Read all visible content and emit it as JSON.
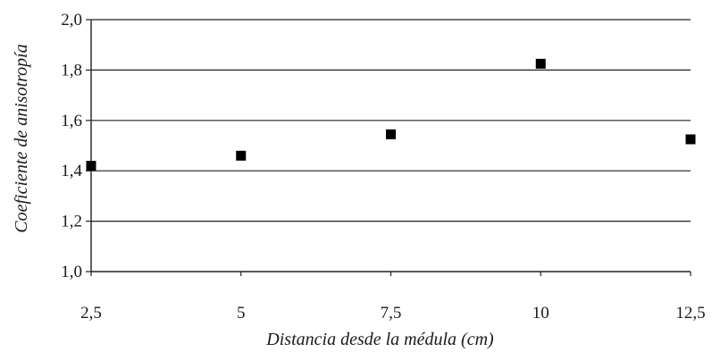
{
  "chart_data": {
    "type": "scatter",
    "xlabel": "Distancia desde la médula (cm)",
    "ylabel": "Coeficiente de anisotropía",
    "xlim": [
      2.5,
      12.5
    ],
    "ylim": [
      1.0,
      2.0
    ],
    "x_ticks": [
      "2,5",
      "5",
      "7,5",
      "10",
      "12,5"
    ],
    "y_ticks": [
      "1,0",
      "1,2",
      "1,4",
      "1,6",
      "1,8",
      "2,0"
    ],
    "x_tick_values": [
      2.5,
      5,
      7.5,
      10,
      12.5
    ],
    "y_tick_values": [
      1.0,
      1.2,
      1.4,
      1.6,
      1.8,
      2.0
    ],
    "grid": "horizontal",
    "series": [
      {
        "marker": "square",
        "color": "#000000",
        "points": [
          {
            "x": 2.5,
            "y": 1.42
          },
          {
            "x": 5,
            "y": 1.46
          },
          {
            "x": 7.5,
            "y": 1.545
          },
          {
            "x": 10,
            "y": 1.825
          },
          {
            "x": 12.5,
            "y": 1.525
          }
        ]
      }
    ]
  }
}
